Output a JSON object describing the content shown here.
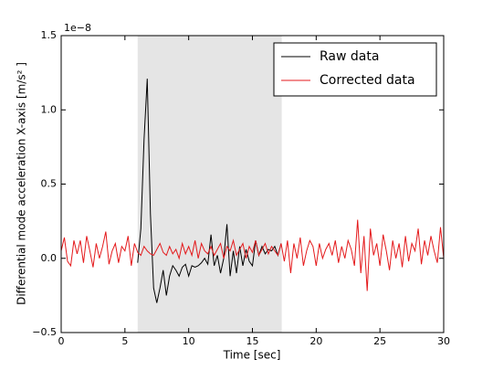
{
  "chart_data": {
    "type": "line",
    "xlabel": "Time [sec]",
    "ylabel": "Differential mode acceleration X-axis [m/s² ]",
    "y_offset_text": "1e−8",
    "xlim": [
      0,
      30
    ],
    "xticks": [
      0,
      5,
      10,
      15,
      20,
      25,
      30
    ],
    "ylim": [
      -0.5,
      1.5
    ],
    "yticks": [
      {
        "value": -0.5,
        "label": "−0.5"
      },
      {
        "value": 0,
        "label": "0.0"
      },
      {
        "value": 0.5,
        "label": "0.5"
      },
      {
        "value": 1,
        "label": "1.0"
      },
      {
        "value": 1.5,
        "label": "1.5"
      }
    ],
    "highlight": [
      6,
      17.3
    ],
    "highlight_color": "#e5e5e5",
    "legend": "upper right",
    "series": [
      {
        "name": "Raw data",
        "color": "#000000",
        "x": [
          6,
          6.25,
          6.5,
          6.75,
          7,
          7.25,
          7.5,
          7.75,
          8,
          8.25,
          8.5,
          8.75,
          9,
          9.25,
          9.5,
          9.75,
          10,
          10.25,
          10.5,
          10.75,
          11,
          11.25,
          11.5,
          11.75,
          12,
          12.25,
          12.5,
          12.75,
          13,
          13.25,
          13.5,
          13.75,
          14,
          14.25,
          14.5,
          14.75,
          15,
          15.25,
          15.5,
          15.75,
          16,
          16.25,
          16.5,
          16.75,
          17,
          17.25
        ],
        "values": [
          -0.03,
          0.2,
          0.8,
          1.21,
          0.3,
          -0.2,
          -0.3,
          -0.2,
          -0.08,
          -0.25,
          -0.12,
          -0.05,
          -0.08,
          -0.12,
          -0.06,
          -0.04,
          -0.12,
          -0.05,
          -0.06,
          -0.05,
          -0.03,
          0.0,
          -0.04,
          0.16,
          -0.05,
          0.02,
          -0.1,
          0.0,
          0.23,
          -0.12,
          0.05,
          -0.1,
          0.08,
          -0.05,
          0.06,
          -0.02,
          -0.05,
          0.12,
          0.02,
          0.08,
          0.03,
          0.06,
          0.05,
          0.08,
          0.02,
          0.1
        ]
      },
      {
        "name": "Corrected data",
        "color": "#e41a1c",
        "x": [
          0,
          0.25,
          0.5,
          0.75,
          1,
          1.25,
          1.5,
          1.75,
          2,
          2.25,
          2.5,
          2.75,
          3,
          3.25,
          3.5,
          3.75,
          4,
          4.25,
          4.5,
          4.75,
          5,
          5.25,
          5.5,
          5.75,
          6,
          6.25,
          6.5,
          6.75,
          7,
          7.25,
          7.5,
          7.75,
          8,
          8.25,
          8.5,
          8.75,
          9,
          9.25,
          9.5,
          9.75,
          10,
          10.25,
          10.5,
          10.75,
          11,
          11.25,
          11.5,
          11.75,
          12,
          12.25,
          12.5,
          12.75,
          13,
          13.25,
          13.5,
          13.75,
          14,
          14.25,
          14.5,
          14.75,
          15,
          15.25,
          15.5,
          15.75,
          16,
          16.25,
          16.5,
          16.75,
          17,
          17.25,
          17.5,
          17.75,
          18,
          18.25,
          18.5,
          18.75,
          19,
          19.25,
          19.5,
          19.75,
          20,
          20.25,
          20.5,
          20.75,
          21,
          21.25,
          21.5,
          21.75,
          22,
          22.25,
          22.5,
          22.75,
          23,
          23.25,
          23.5,
          23.75,
          24,
          24.25,
          24.5,
          24.75,
          25,
          25.25,
          25.5,
          25.75,
          26,
          26.25,
          26.5,
          26.75,
          27,
          27.25,
          27.5,
          27.75,
          28,
          28.25,
          28.5,
          28.75,
          29,
          29.25,
          29.5,
          29.75,
          30
        ],
        "values": [
          0.05,
          0.14,
          -0.02,
          -0.05,
          0.12,
          0.03,
          0.12,
          -0.03,
          0.15,
          0.05,
          -0.06,
          0.1,
          0.0,
          0.08,
          0.18,
          -0.04,
          0.05,
          0.1,
          -0.03,
          0.08,
          0.05,
          0.15,
          -0.05,
          0.1,
          0.04,
          0.02,
          0.08,
          0.05,
          0.03,
          0.02,
          0.06,
          0.1,
          0.04,
          0.02,
          0.08,
          0.03,
          0.06,
          0.0,
          0.1,
          0.03,
          0.08,
          0.02,
          0.12,
          0.0,
          0.1,
          0.05,
          0.03,
          0.08,
          0.02,
          0.06,
          0.1,
          0.0,
          0.08,
          0.05,
          0.12,
          0.02,
          0.06,
          0.1,
          0.0,
          0.08,
          0.04,
          0.12,
          0.02,
          0.06,
          0.1,
          0.03,
          0.08,
          0.05,
          0.02,
          0.1,
          -0.02,
          0.12,
          -0.1,
          0.1,
          0.0,
          0.14,
          -0.05,
          0.05,
          0.12,
          0.08,
          -0.05,
          0.1,
          0.0,
          0.06,
          0.1,
          0.02,
          0.12,
          -0.03,
          0.08,
          0.0,
          0.12,
          0.06,
          -0.05,
          0.26,
          -0.1,
          0.15,
          -0.22,
          0.2,
          0.02,
          0.1,
          -0.05,
          0.16,
          0.05,
          -0.08,
          0.12,
          0.0,
          0.1,
          -0.06,
          0.15,
          -0.02,
          0.1,
          0.05,
          0.2,
          -0.04,
          0.12,
          0.02,
          0.15,
          0.05,
          -0.03,
          0.21,
          0.0
        ]
      }
    ]
  }
}
